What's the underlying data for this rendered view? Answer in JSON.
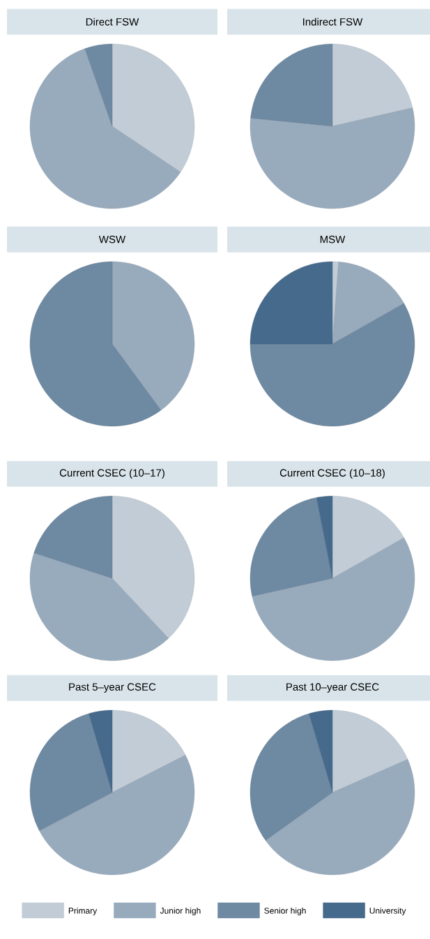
{
  "chart_data": [
    {
      "type": "pie",
      "title": "Direct FSW",
      "categories": [
        null,
        null,
        null,
        null
      ],
      "values": [
        34.4,
        60.2,
        5.4,
        0
      ],
      "colors": [
        "#c1ccd6",
        "#98abbd",
        "#6e89a2",
        "#466a8c"
      ]
    },
    {
      "type": "pie",
      "title": "Indirect FSW",
      "categories": [
        null,
        null,
        null,
        null
      ],
      "values": [
        21.4,
        55.2,
        23.4,
        0
      ],
      "colors": [
        "#c1ccd6",
        "#98abbd",
        "#6e89a2",
        "#466a8c"
      ]
    },
    {
      "type": "pie",
      "title": "WSW",
      "categories": [
        null,
        null,
        null,
        null
      ],
      "values": [
        0,
        39.9,
        60.1,
        0
      ],
      "colors": [
        "#c1ccd6",
        "#98abbd",
        "#6e89a2",
        "#466a8c"
      ]
    },
    {
      "type": "pie",
      "title": "MSW",
      "categories": [
        null,
        null,
        null,
        null
      ],
      "values": [
        1.2,
        15.6,
        58.2,
        25.0
      ],
      "colors": [
        "#c1ccd6",
        "#98abbd",
        "#6e89a2",
        "#466a8c"
      ]
    },
    {
      "type": "pie",
      "title": "Current CSEC (10–17)",
      "categories": [
        null,
        null,
        null,
        null
      ],
      "values": [
        38.0,
        42.0,
        20.0,
        0
      ],
      "colors": [
        "#c1ccd6",
        "#98abbd",
        "#6e89a2",
        "#466a8c"
      ]
    },
    {
      "type": "pie",
      "title": "Current CSEC (10–18)",
      "categories": [
        null,
        null,
        null,
        null
      ],
      "values": [
        16.8,
        54.7,
        25.4,
        3.1
      ],
      "colors": [
        "#c1ccd6",
        "#98abbd",
        "#6e89a2",
        "#466a8c"
      ]
    },
    {
      "type": "pie",
      "title": "Past 5–year CSEC",
      "categories": [
        null,
        null,
        null,
        null
      ],
      "values": [
        17.5,
        49.8,
        28.1,
        4.6
      ],
      "colors": [
        "#c1ccd6",
        "#98abbd",
        "#6e89a2",
        "#466a8c"
      ]
    },
    {
      "type": "pie",
      "title": "Past 10–year CSEC",
      "categories": [
        "Primary",
        "Junior high",
        "Senior high",
        "University"
      ],
      "values": [
        18.4,
        46.7,
        30.3,
        4.6
      ],
      "colors": [
        "#c1ccd6",
        "#98abbd",
        "#6e89a2",
        "#466a8c"
      ],
      "legend": "bottom"
    }
  ]
}
